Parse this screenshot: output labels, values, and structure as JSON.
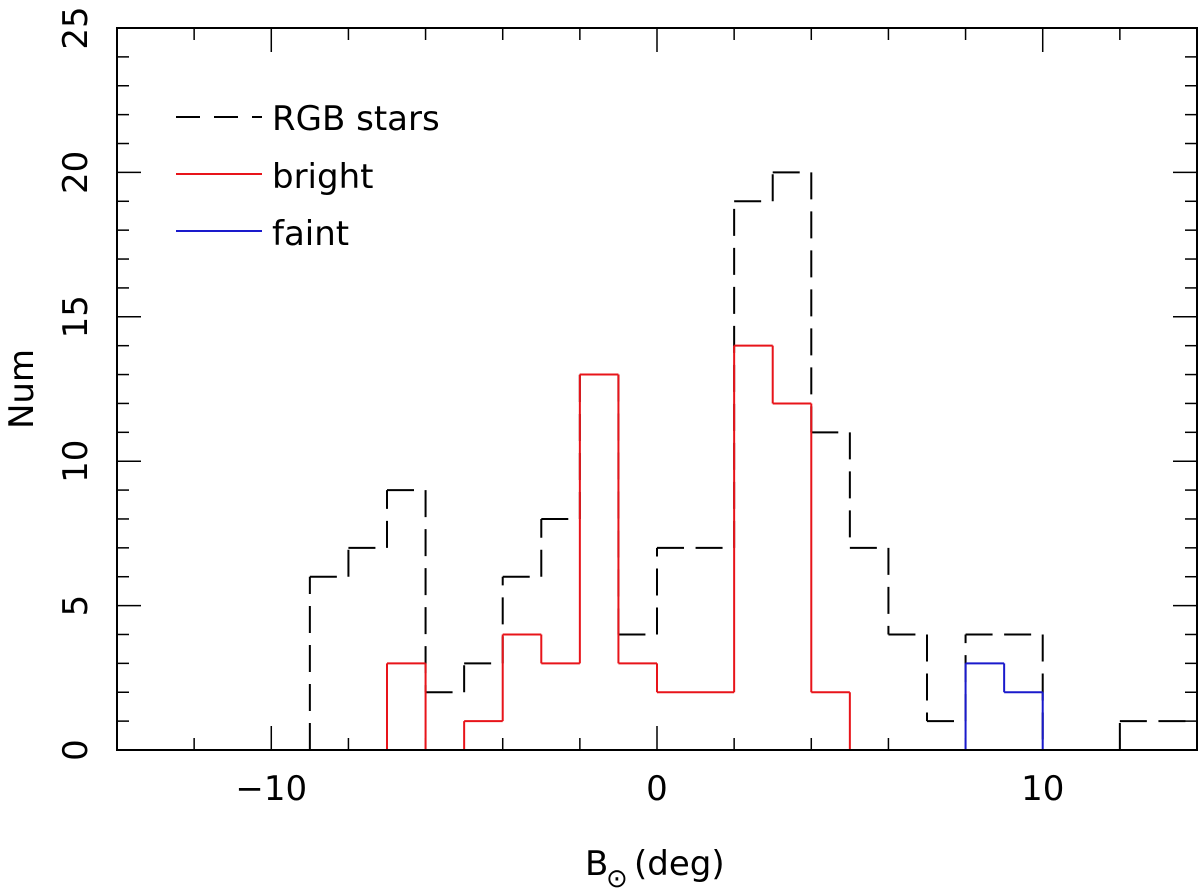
{
  "chart_data": {
    "type": "histogram",
    "xlabel_main": "B",
    "xlabel_sub": "⊙",
    "xlabel_unit": "(deg)",
    "ylabel": "Num",
    "xlim": [
      -14,
      14
    ],
    "ylim": [
      0,
      25
    ],
    "x_ticks": [
      -10,
      0,
      10
    ],
    "x_tick_labels": [
      "−10",
      "0",
      "10"
    ],
    "y_ticks": [
      0,
      5,
      10,
      15,
      20,
      25
    ],
    "y_tick_labels": [
      "0",
      "5",
      "10",
      "15",
      "20",
      "25"
    ],
    "bin_edges": [
      -14,
      -13,
      -12,
      -11,
      -10,
      -9,
      -8,
      -7,
      -6,
      -5,
      -4,
      -3,
      -2,
      -1,
      0,
      1,
      2,
      3,
      4,
      5,
      6,
      7,
      8,
      9,
      10,
      11,
      12,
      13,
      14
    ],
    "series": [
      {
        "name": "RGB stars",
        "style": "dashed",
        "color": "#000000",
        "values": [
          0,
          0,
          0,
          0,
          0,
          6,
          7,
          9,
          2,
          3,
          6,
          8,
          13,
          4,
          7,
          7,
          19,
          20,
          11,
          7,
          4,
          1,
          4,
          4,
          0,
          0,
          1,
          1
        ]
      },
      {
        "name": "bright",
        "style": "solid",
        "color": "#e8141a",
        "values": [
          0,
          0,
          0,
          0,
          0,
          0,
          0,
          3,
          0,
          1,
          4,
          3,
          13,
          3,
          2,
          2,
          14,
          12,
          2,
          0,
          0,
          0,
          0,
          0,
          0,
          0,
          0,
          0
        ]
      },
      {
        "name": "faint",
        "style": "solid",
        "color": "#1a1acc",
        "values": [
          0,
          0,
          0,
          0,
          0,
          0,
          0,
          0,
          0,
          0,
          0,
          0,
          0,
          0,
          0,
          0,
          0,
          0,
          0,
          0,
          0,
          0,
          3,
          2,
          0,
          0,
          0,
          0
        ]
      }
    ],
    "legend_position": "top-left"
  }
}
